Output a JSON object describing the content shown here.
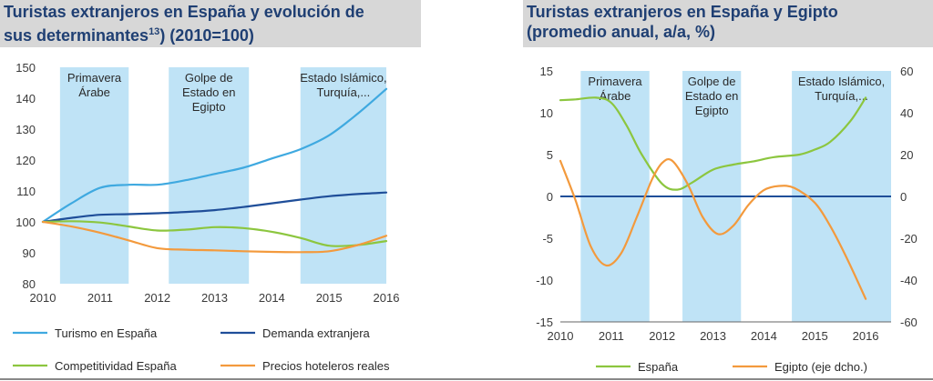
{
  "chart_data": [
    {
      "type": "line",
      "title_line1": "Turistas extranjeros en España y evolución de",
      "title_line2": "sus determinantes",
      "title_sup": "13",
      "title_line2_suffix": ") (2010=100)",
      "xlim": [
        2010,
        2016
      ],
      "ylim": [
        80,
        150
      ],
      "x_ticks": [
        "2010",
        "2011",
        "2012",
        "2013",
        "2014",
        "2015",
        "2016"
      ],
      "y_ticks": [
        "80",
        "90",
        "100",
        "110",
        "120",
        "130",
        "140",
        "150"
      ],
      "shaded_periods": [
        {
          "start": 2010.3,
          "end": 2011.5,
          "label_lines": [
            "Primavera",
            "Árabe"
          ]
        },
        {
          "start": 2012.2,
          "end": 2013.6,
          "label_lines": [
            "Golpe de",
            "Estado en",
            "Egipto"
          ]
        },
        {
          "start": 2014.5,
          "end": 2016.0,
          "label_lines": [
            "Estado Islámico,",
            "Turquía,..."
          ]
        }
      ],
      "series": [
        {
          "name": "Turismo en España",
          "color": "#3fa9e0",
          "points": [
            [
              2010,
              100
            ],
            [
              2010.5,
              106
            ],
            [
              2011,
              111
            ],
            [
              2011.5,
              112
            ],
            [
              2012,
              112
            ],
            [
              2012.5,
              113.5
            ],
            [
              2013,
              115.5
            ],
            [
              2013.5,
              117.5
            ],
            [
              2014,
              120.5
            ],
            [
              2014.5,
              123.5
            ],
            [
              2015,
              128
            ],
            [
              2015.5,
              135
            ],
            [
              2016,
              143
            ]
          ]
        },
        {
          "name": "Demanda extranjera",
          "color": "#1f4e99",
          "points": [
            [
              2010,
              100
            ],
            [
              2010.5,
              101.3
            ],
            [
              2011,
              102.3
            ],
            [
              2011.5,
              102.5
            ],
            [
              2012,
              102.8
            ],
            [
              2012.5,
              103.2
            ],
            [
              2013,
              103.8
            ],
            [
              2013.5,
              104.8
            ],
            [
              2014,
              106
            ],
            [
              2014.5,
              107.2
            ],
            [
              2015,
              108.3
            ],
            [
              2015.5,
              109
            ],
            [
              2016,
              109.5
            ]
          ]
        },
        {
          "name": "Competitividad España",
          "color": "#8cc63f",
          "points": [
            [
              2010,
              100
            ],
            [
              2010.5,
              100.2
            ],
            [
              2011,
              99.8
            ],
            [
              2011.5,
              98.5
            ],
            [
              2012,
              97.2
            ],
            [
              2012.5,
              97.5
            ],
            [
              2013,
              98.3
            ],
            [
              2013.5,
              98
            ],
            [
              2014,
              96.8
            ],
            [
              2014.5,
              94.8
            ],
            [
              2015,
              92.3
            ],
            [
              2015.5,
              92.5
            ],
            [
              2016,
              93.8
            ]
          ]
        },
        {
          "name": "Precios hoteleros reales",
          "color": "#f39a3d",
          "points": [
            [
              2010,
              100
            ],
            [
              2010.5,
              98.5
            ],
            [
              2011,
              96.5
            ],
            [
              2011.5,
              94
            ],
            [
              2012,
              91.5
            ],
            [
              2012.5,
              91
            ],
            [
              2013,
              90.8
            ],
            [
              2013.5,
              90.5
            ],
            [
              2014,
              90.3
            ],
            [
              2014.5,
              90.2
            ],
            [
              2015,
              90.5
            ],
            [
              2015.5,
              92.5
            ],
            [
              2016,
              95.5
            ]
          ]
        }
      ]
    },
    {
      "type": "line",
      "title_line1": "Turistas extranjeros en España y Egipto",
      "title_line2": "(promedio anual, a/a, %)",
      "xlim": [
        2010,
        2016.5
      ],
      "ylim": [
        -15,
        15
      ],
      "y2lim": [
        -60,
        60
      ],
      "x_ticks": [
        "2010",
        "2011",
        "2012",
        "2013",
        "2014",
        "2015",
        "2016"
      ],
      "y_ticks": [
        "-15",
        "-10",
        "-5",
        "0",
        "5",
        "10",
        "15"
      ],
      "y2_ticks": [
        "-60",
        "-40",
        "-20",
        "0",
        "20",
        "40",
        "60"
      ],
      "shaded_periods": [
        {
          "start": 2010.4,
          "end": 2011.75,
          "label_lines": [
            "Primavera",
            "Árabe"
          ]
        },
        {
          "start": 2012.4,
          "end": 2013.55,
          "label_lines": [
            "Golpe de",
            "Estado en",
            "Egipto"
          ]
        },
        {
          "start": 2014.55,
          "end": 2016.5,
          "label_lines": [
            "Estado Islámico,",
            "Turquía,..."
          ]
        }
      ],
      "series": [
        {
          "name": "España",
          "color": "#8cc63f",
          "axis": "left",
          "points": [
            [
              2010,
              11.5
            ],
            [
              2010.3,
              11.6
            ],
            [
              2010.7,
              11.8
            ],
            [
              2011,
              11.2
            ],
            [
              2011.3,
              8.5
            ],
            [
              2011.6,
              5
            ],
            [
              2012,
              1.5
            ],
            [
              2012.3,
              0.8
            ],
            [
              2012.6,
              1.7
            ],
            [
              2013,
              3.2
            ],
            [
              2013.4,
              3.8
            ],
            [
              2013.8,
              4.2
            ],
            [
              2014.2,
              4.7
            ],
            [
              2014.7,
              5
            ],
            [
              2015,
              5.6
            ],
            [
              2015.3,
              6.5
            ],
            [
              2015.7,
              9
            ],
            [
              2016,
              11.8
            ]
          ]
        },
        {
          "name": "Egipto (eje dcho.)",
          "color": "#f39a3d",
          "axis": "right",
          "points": [
            [
              2010,
              17
            ],
            [
              2010.3,
              -2
            ],
            [
              2010.6,
              -24
            ],
            [
              2010.9,
              -33
            ],
            [
              2011.2,
              -27
            ],
            [
              2011.5,
              -10
            ],
            [
              2011.8,
              8
            ],
            [
              2012,
              16
            ],
            [
              2012.2,
              17
            ],
            [
              2012.5,
              6
            ],
            [
              2012.8,
              -10
            ],
            [
              2013.1,
              -18
            ],
            [
              2013.4,
              -14
            ],
            [
              2013.7,
              -4
            ],
            [
              2014,
              3
            ],
            [
              2014.3,
              5
            ],
            [
              2014.6,
              4
            ],
            [
              2015,
              -3
            ],
            [
              2015.3,
              -14
            ],
            [
              2015.6,
              -28
            ],
            [
              2016,
              -49
            ]
          ]
        }
      ]
    }
  ]
}
